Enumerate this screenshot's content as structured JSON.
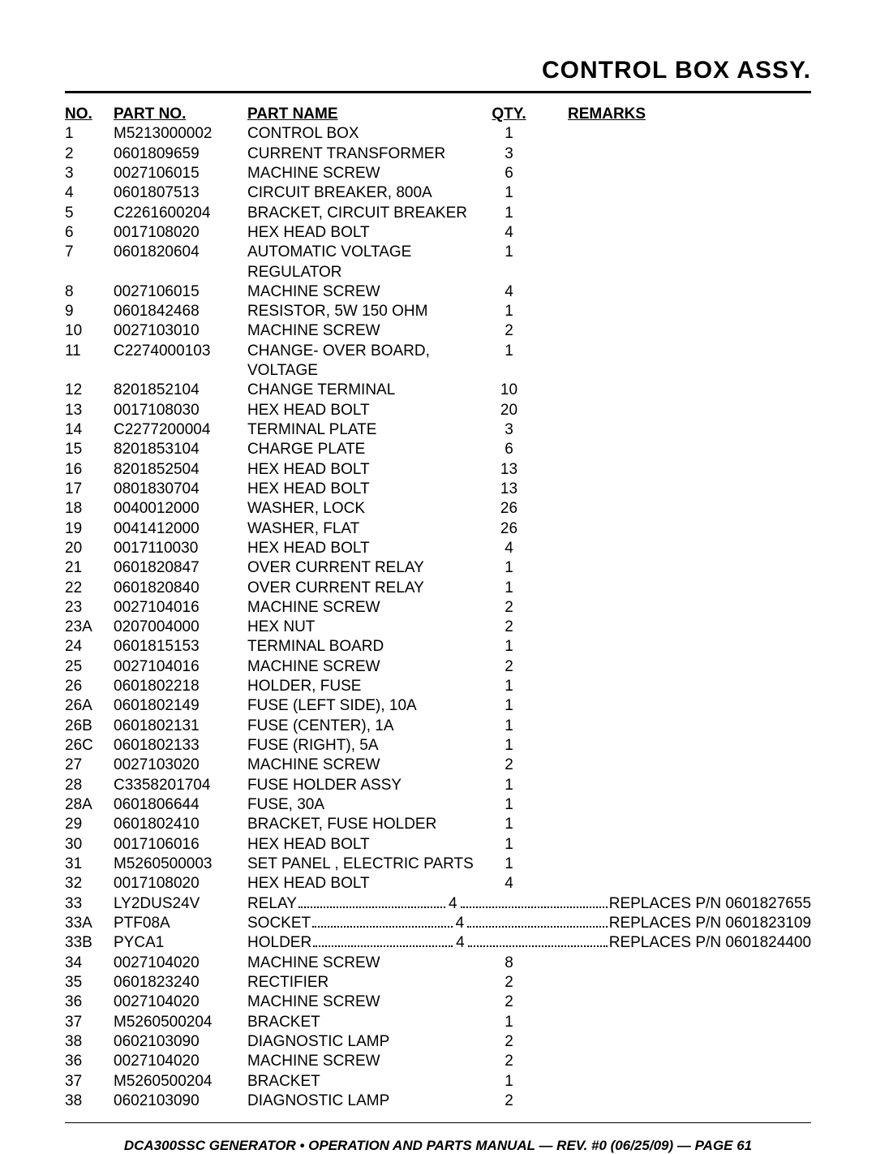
{
  "page": {
    "title": "CONTROL BOX ASSY.",
    "footer": "DCA300SSC GENERATOR • OPERATION AND PARTS MANUAL — REV. #0 (06/25/09) — PAGE 61",
    "background_color": "#ffffff",
    "text_color": "#000000",
    "rule_color": "#000000",
    "font_size_body": 19,
    "font_size_title": 30,
    "font_size_footer": 17
  },
  "columns": {
    "no": "NO.",
    "part_no": "PART NO.",
    "part_name": "PART NAME",
    "qty": "QTY.",
    "remarks": "REMARKS"
  },
  "rows": [
    {
      "no": "1",
      "pn": "M5213000002",
      "name": "CONTROL BOX",
      "qty": "1",
      "rem": ""
    },
    {
      "no": "2",
      "pn": "0601809659",
      "name": "CURRENT TRANSFORMER",
      "qty": "3",
      "rem": ""
    },
    {
      "no": "3",
      "pn": "0027106015",
      "name": "MACHINE SCREW",
      "qty": "6",
      "rem": ""
    },
    {
      "no": "4",
      "pn": "0601807513",
      "name": "CIRCUIT BREAKER, 800A",
      "qty": "1",
      "rem": ""
    },
    {
      "no": "5",
      "pn": "C2261600204",
      "name": "BRACKET, CIRCUIT BREAKER",
      "qty": "1",
      "rem": ""
    },
    {
      "no": "6",
      "pn": "0017108020",
      "name": "HEX HEAD BOLT",
      "qty": "4",
      "rem": ""
    },
    {
      "no": "7",
      "pn": "0601820604",
      "name": "AUTOMATIC VOLTAGE REGULATOR",
      "qty": "1",
      "rem": ""
    },
    {
      "no": "8",
      "pn": "0027106015",
      "name": "MACHINE SCREW",
      "qty": "4",
      "rem": ""
    },
    {
      "no": "9",
      "pn": "0601842468",
      "name": "RESISTOR, 5W 150 OHM",
      "qty": "1",
      "rem": ""
    },
    {
      "no": "10",
      "pn": "0027103010",
      "name": "MACHINE SCREW",
      "qty": "2",
      "rem": ""
    },
    {
      "no": "11",
      "pn": "C2274000103",
      "name": "CHANGE- OVER BOARD, VOLTAGE",
      "qty": "1",
      "rem": ""
    },
    {
      "no": "12",
      "pn": "8201852104",
      "name": "CHANGE TERMINAL",
      "qty": "10",
      "rem": ""
    },
    {
      "no": "13",
      "pn": "0017108030",
      "name": "HEX HEAD BOLT",
      "qty": "20",
      "rem": ""
    },
    {
      "no": "14",
      "pn": "C2277200004",
      "name": "TERMINAL PLATE",
      "qty": "3",
      "rem": ""
    },
    {
      "no": "15",
      "pn": "8201853104",
      "name": "CHARGE PLATE",
      "qty": "6",
      "rem": ""
    },
    {
      "no": "16",
      "pn": "8201852504",
      "name": "HEX HEAD BOLT",
      "qty": "13",
      "rem": ""
    },
    {
      "no": "17",
      "pn": "0801830704",
      "name": "HEX HEAD BOLT",
      "qty": "13",
      "rem": ""
    },
    {
      "no": "18",
      "pn": "0040012000",
      "name": "WASHER, LOCK",
      "qty": "26",
      "rem": ""
    },
    {
      "no": "19",
      "pn": "0041412000",
      "name": "WASHER, FLAT",
      "qty": "26",
      "rem": ""
    },
    {
      "no": "20",
      "pn": "0017110030",
      "name": "HEX HEAD BOLT",
      "qty": "4",
      "rem": ""
    },
    {
      "no": "21",
      "pn": "0601820847",
      "name": "OVER CURRENT RELAY",
      "qty": "1",
      "rem": ""
    },
    {
      "no": "22",
      "pn": "0601820840",
      "name": "OVER CURRENT RELAY",
      "qty": "1",
      "rem": ""
    },
    {
      "no": "23",
      "pn": "0027104016",
      "name": "MACHINE SCREW",
      "qty": "2",
      "rem": ""
    },
    {
      "no": "23A",
      "pn": "0207004000",
      "name": "HEX NUT",
      "qty": "2",
      "rem": ""
    },
    {
      "no": "24",
      "pn": "0601815153",
      "name": "TERMINAL BOARD",
      "qty": "1",
      "rem": ""
    },
    {
      "no": "25",
      "pn": "0027104016",
      "name": "MACHINE SCREW",
      "qty": "2",
      "rem": ""
    },
    {
      "no": "26",
      "pn": "0601802218",
      "name": "HOLDER, FUSE",
      "qty": "1",
      "rem": ""
    },
    {
      "no": "26A",
      "pn": "0601802149",
      "name": "FUSE (LEFT SIDE), 10A",
      "qty": "1",
      "rem": ""
    },
    {
      "no": "26B",
      "pn": "0601802131",
      "name": "FUSE (CENTER), 1A",
      "qty": "1",
      "rem": ""
    },
    {
      "no": "26C",
      "pn": "0601802133",
      "name": "FUSE (RIGHT), 5A",
      "qty": "1",
      "rem": ""
    },
    {
      "no": "27",
      "pn": "0027103020",
      "name": "MACHINE SCREW",
      "qty": "2",
      "rem": ""
    },
    {
      "no": "28",
      "pn": "C3358201704",
      "name": "FUSE HOLDER ASSY",
      "qty": "1",
      "rem": ""
    },
    {
      "no": "28A",
      "pn": "0601806644",
      "name": "FUSE, 30A",
      "qty": "1",
      "rem": ""
    },
    {
      "no": "29",
      "pn": "0601802410",
      "name": "BRACKET, FUSE HOLDER",
      "qty": "1",
      "rem": ""
    },
    {
      "no": "30",
      "pn": "0017106016",
      "name": "HEX HEAD BOLT",
      "qty": "1",
      "rem": ""
    },
    {
      "no": "31",
      "pn": "M5260500003",
      "name": "SET PANEL , ELECTRIC PARTS",
      "qty": "1",
      "rem": ""
    },
    {
      "no": "32",
      "pn": "0017108020",
      "name": "HEX HEAD BOLT",
      "qty": "4",
      "rem": ""
    },
    {
      "no": "33",
      "pn": "LY2DUS24V",
      "name": "RELAY",
      "qty": "4",
      "rem": "REPLACES P/N 0601827655",
      "dotted": true
    },
    {
      "no": "33A",
      "pn": "PTF08A",
      "name": "SOCKET",
      "qty": "4",
      "rem": "REPLACES P/N 0601823109",
      "dotted": true
    },
    {
      "no": "33B",
      "pn": "PYCA1",
      "name": "HOLDER",
      "qty": "4",
      "rem": "REPLACES P/N 0601824400",
      "dotted": true
    },
    {
      "no": "34",
      "pn": "0027104020",
      "name": "MACHINE SCREW",
      "qty": "8",
      "rem": ""
    },
    {
      "no": "35",
      "pn": "0601823240",
      "name": "RECTIFIER",
      "qty": "2",
      "rem": ""
    },
    {
      "no": "36",
      "pn": "0027104020",
      "name": "MACHINE SCREW",
      "qty": "2",
      "rem": ""
    },
    {
      "no": "37",
      "pn": "M5260500204",
      "name": "BRACKET",
      "qty": "1",
      "rem": ""
    },
    {
      "no": "38",
      "pn": "0602103090",
      "name": "DIAGNOSTIC LAMP",
      "qty": "2",
      "rem": ""
    },
    {
      "no": "36",
      "pn": "0027104020",
      "name": "MACHINE SCREW",
      "qty": "2",
      "rem": ""
    },
    {
      "no": "37",
      "pn": "M5260500204",
      "name": "BRACKET",
      "qty": "1",
      "rem": ""
    },
    {
      "no": "38",
      "pn": "0602103090",
      "name": "DIAGNOSTIC LAMP",
      "qty": "2",
      "rem": ""
    }
  ]
}
